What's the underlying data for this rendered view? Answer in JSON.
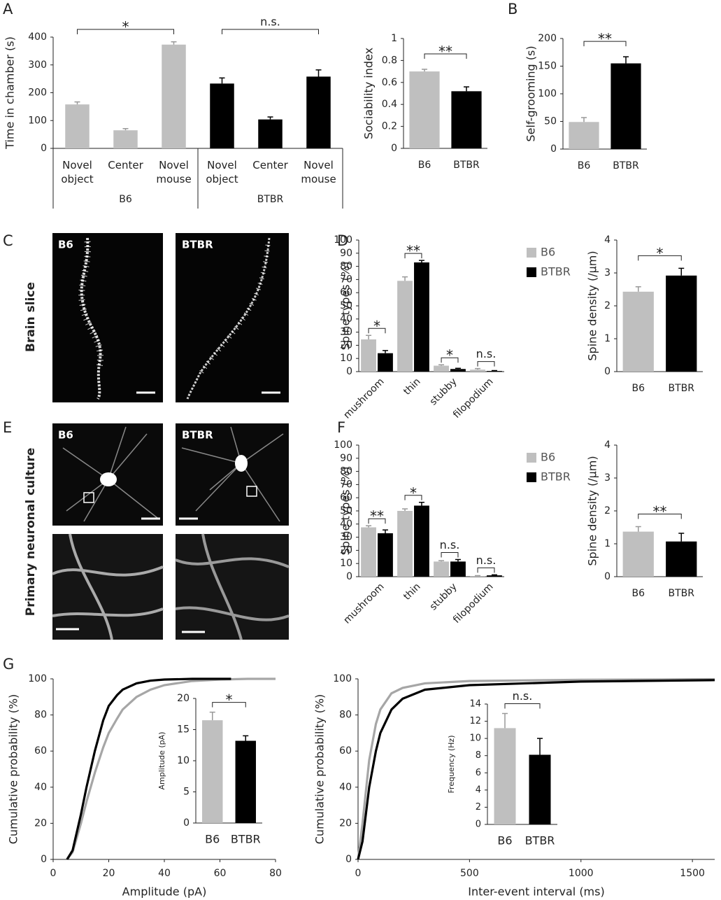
{
  "figure": {
    "panel_letters": [
      "A",
      "B",
      "C",
      "D",
      "E",
      "F",
      "G"
    ],
    "row_labels": [
      "Brain slice",
      "Primary neuronal culture"
    ],
    "image_labels": [
      "B6",
      "BTBR",
      "B6",
      "BTBR"
    ]
  },
  "chart_data": [
    {
      "type": "bar",
      "ylabel": "Time in chamber (s)",
      "categories": [
        "Novel object",
        "Center",
        "Novel mouse",
        "Novel object",
        "Center",
        "Novel mouse"
      ],
      "groups": [
        "B6",
        "BTBR"
      ],
      "values": [
        158,
        65,
        373,
        233,
        104,
        258
      ],
      "errors": [
        9,
        6,
        10,
        20,
        9,
        24
      ],
      "colors": [
        "#bfbfbf",
        "#bfbfbf",
        "#bfbfbf",
        "#000000",
        "#000000",
        "#000000"
      ],
      "ylim": [
        0,
        400
      ],
      "yticks": [
        0,
        100,
        200,
        300,
        400
      ],
      "significance": [
        "*",
        "n.s."
      ]
    },
    {
      "type": "bar",
      "ylabel": "Sociability index",
      "categories": [
        "B6",
        "BTBR"
      ],
      "values": [
        0.7,
        0.52
      ],
      "errors": [
        0.02,
        0.04
      ],
      "colors": [
        "#bfbfbf",
        "#000000"
      ],
      "ylim": [
        0,
        1
      ],
      "yticks": [
        0,
        0.2,
        0.4,
        0.6,
        0.8,
        1
      ],
      "significance": "**"
    },
    {
      "type": "bar",
      "ylabel": "Self-grooming (s)",
      "categories": [
        "B6",
        "BTBR"
      ],
      "values": [
        49,
        155
      ],
      "errors": [
        8,
        12
      ],
      "colors": [
        "#bfbfbf",
        "#000000"
      ],
      "ylim": [
        0,
        200
      ],
      "yticks": [
        0,
        50,
        100,
        150,
        200
      ],
      "significance": "**"
    },
    {
      "type": "bar",
      "ylabel": "Spine types (%)",
      "categories": [
        "mushroom",
        "thin",
        "stubby",
        "filopodium"
      ],
      "series": [
        {
          "name": "B6",
          "color": "#bfbfbf",
          "values": [
            24.5,
            69,
            4.5,
            1.5
          ],
          "errors": [
            3,
            3,
            0.7,
            0.8
          ]
        },
        {
          "name": "BTBR",
          "color": "#000000",
          "values": [
            14,
            83,
            2,
            0.5
          ],
          "errors": [
            2,
            1.5,
            0.5,
            0.3
          ]
        }
      ],
      "ylim": [
        0,
        100
      ],
      "yticks": [
        0,
        10,
        20,
        30,
        40,
        50,
        60,
        70,
        80,
        90,
        100
      ],
      "significance": [
        "*",
        "**",
        "*",
        "n.s."
      ],
      "legend": "upper right"
    },
    {
      "type": "bar",
      "ylabel": "Spine density (/µm)",
      "categories": [
        "B6",
        "BTBR"
      ],
      "values": [
        2.43,
        2.92
      ],
      "errors": [
        0.15,
        0.22
      ],
      "colors": [
        "#bfbfbf",
        "#000000"
      ],
      "ylim": [
        0,
        4
      ],
      "yticks": [
        0,
        1,
        2,
        3,
        4
      ],
      "significance": "*"
    },
    {
      "type": "bar",
      "ylabel": "Spine types (%)",
      "categories": [
        "mushroom",
        "thin",
        "stubby",
        "filopodium"
      ],
      "series": [
        {
          "name": "B6",
          "color": "#bfbfbf",
          "values": [
            37.5,
            50,
            11.5,
            0.5
          ],
          "errors": [
            1.2,
            1.5,
            0.7,
            0.3
          ]
        },
        {
          "name": "BTBR",
          "color": "#000000",
          "values": [
            33,
            54,
            11.5,
            1
          ],
          "errors": [
            2.5,
            2.5,
            1.5,
            0.4
          ]
        }
      ],
      "ylim": [
        0,
        100
      ],
      "yticks": [
        0,
        10,
        20,
        30,
        40,
        50,
        60,
        70,
        80,
        90,
        100
      ],
      "significance": [
        "**",
        "*",
        "n.s.",
        "n.s."
      ],
      "legend": "upper right"
    },
    {
      "type": "bar",
      "ylabel": "Spine density (/µm)",
      "categories": [
        "B6",
        "BTBR"
      ],
      "values": [
        1.37,
        1.07
      ],
      "errors": [
        0.15,
        0.25
      ],
      "colors": [
        "#bfbfbf",
        "#000000"
      ],
      "ylim": [
        0,
        4
      ],
      "yticks": [
        0,
        1,
        2,
        3,
        4
      ],
      "significance": "**"
    },
    {
      "type": "line",
      "xlabel": "Amplitude (pA)",
      "ylabel": "Cumulative probability (%)",
      "series": [
        {
          "color": "#a6a6a6",
          "x": [
            5,
            7,
            10,
            12,
            15,
            18,
            20,
            23,
            25,
            30,
            35,
            40,
            50,
            60,
            70,
            80
          ],
          "values": [
            0,
            4,
            20,
            32,
            48,
            62,
            70,
            78,
            83,
            90,
            94,
            96.5,
            98.8,
            99.6,
            100,
            100
          ]
        },
        {
          "color": "#000000",
          "x": [
            5,
            7,
            10,
            12,
            15,
            18,
            20,
            23,
            25,
            30,
            35,
            40,
            50,
            64
          ],
          "values": [
            0,
            5,
            25,
            40,
            60,
            77,
            85,
            91,
            94,
            97.5,
            99,
            99.6,
            100,
            100
          ]
        }
      ],
      "xlim": [
        0,
        80
      ],
      "xticks": [
        0,
        20,
        40,
        60,
        80
      ],
      "ylim": [
        0,
        100
      ],
      "yticks": [
        0,
        20,
        40,
        60,
        80,
        100
      ]
    },
    {
      "type": "bar",
      "ylabel": "Amplitude (pA)",
      "categories": [
        "B6",
        "BTBR"
      ],
      "values": [
        16.5,
        13.2
      ],
      "errors": [
        1.3,
        0.8
      ],
      "colors": [
        "#bfbfbf",
        "#000000"
      ],
      "ylim": [
        0,
        20
      ],
      "yticks": [
        0,
        5,
        10,
        15,
        20
      ],
      "significance": "*"
    },
    {
      "type": "line",
      "xlabel": "Inter-event interval (ms)",
      "ylabel": "Cumulative probability (%)",
      "series": [
        {
          "color": "#a6a6a6",
          "x": [
            0,
            20,
            50,
            80,
            100,
            150,
            200,
            300,
            500,
            1000,
            1600
          ],
          "values": [
            0,
            20,
            55,
            75,
            83,
            92,
            95,
            97.5,
            98.8,
            99.5,
            99.8
          ]
        },
        {
          "color": "#000000",
          "x": [
            0,
            20,
            50,
            80,
            100,
            150,
            200,
            300,
            500,
            1000,
            1600
          ],
          "values": [
            0,
            10,
            40,
            60,
            70,
            83,
            89,
            94,
            96.5,
            98.5,
            99.3
          ]
        }
      ],
      "xlim": [
        0,
        1600
      ],
      "xticks": [
        0,
        500,
        1000,
        1500
      ],
      "ylim": [
        0,
        100
      ],
      "yticks": [
        0,
        20,
        40,
        60,
        80,
        100
      ]
    },
    {
      "type": "bar",
      "ylabel": "Frequency (Hz)",
      "categories": [
        "B6",
        "BTBR"
      ],
      "values": [
        11.2,
        8.1
      ],
      "errors": [
        1.7,
        1.9
      ],
      "colors": [
        "#bfbfbf",
        "#000000"
      ],
      "ylim": [
        0,
        14
      ],
      "yticks": [
        0,
        2,
        4,
        6,
        8,
        10,
        12,
        14
      ],
      "significance": "n.s."
    }
  ]
}
